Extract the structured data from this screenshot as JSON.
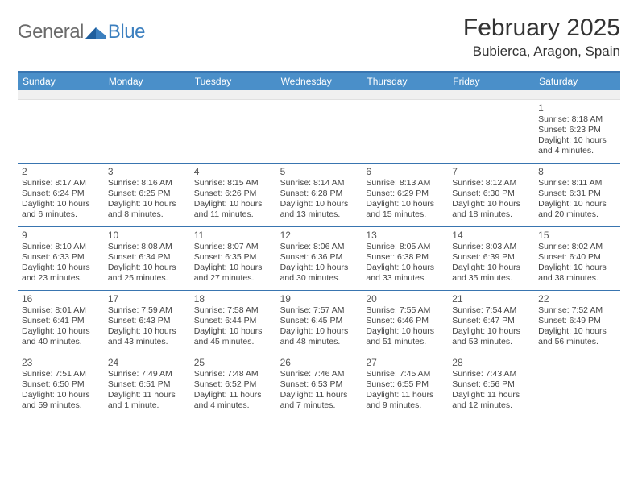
{
  "logo": {
    "text1": "General",
    "text2": "Blue"
  },
  "header": {
    "title": "February 2025",
    "location": "Bubierca, Aragon, Spain"
  },
  "colors": {
    "header_bar": "#4a8fc9",
    "rule": "#3975b0",
    "logo_gray": "#6b6b6b",
    "logo_blue": "#3b7fbf",
    "text": "#333333",
    "daytext": "#444444",
    "alt_row": "#f0f0f0"
  },
  "daynames": [
    "Sunday",
    "Monday",
    "Tuesday",
    "Wednesday",
    "Thursday",
    "Friday",
    "Saturday"
  ],
  "weeks": [
    [
      {
        "n": "",
        "sr": "",
        "ss": "",
        "dl": ""
      },
      {
        "n": "",
        "sr": "",
        "ss": "",
        "dl": ""
      },
      {
        "n": "",
        "sr": "",
        "ss": "",
        "dl": ""
      },
      {
        "n": "",
        "sr": "",
        "ss": "",
        "dl": ""
      },
      {
        "n": "",
        "sr": "",
        "ss": "",
        "dl": ""
      },
      {
        "n": "",
        "sr": "",
        "ss": "",
        "dl": ""
      },
      {
        "n": "1",
        "sr": "Sunrise: 8:18 AM",
        "ss": "Sunset: 6:23 PM",
        "dl": "Daylight: 10 hours and 4 minutes."
      }
    ],
    [
      {
        "n": "2",
        "sr": "Sunrise: 8:17 AM",
        "ss": "Sunset: 6:24 PM",
        "dl": "Daylight: 10 hours and 6 minutes."
      },
      {
        "n": "3",
        "sr": "Sunrise: 8:16 AM",
        "ss": "Sunset: 6:25 PM",
        "dl": "Daylight: 10 hours and 8 minutes."
      },
      {
        "n": "4",
        "sr": "Sunrise: 8:15 AM",
        "ss": "Sunset: 6:26 PM",
        "dl": "Daylight: 10 hours and 11 minutes."
      },
      {
        "n": "5",
        "sr": "Sunrise: 8:14 AM",
        "ss": "Sunset: 6:28 PM",
        "dl": "Daylight: 10 hours and 13 minutes."
      },
      {
        "n": "6",
        "sr": "Sunrise: 8:13 AM",
        "ss": "Sunset: 6:29 PM",
        "dl": "Daylight: 10 hours and 15 minutes."
      },
      {
        "n": "7",
        "sr": "Sunrise: 8:12 AM",
        "ss": "Sunset: 6:30 PM",
        "dl": "Daylight: 10 hours and 18 minutes."
      },
      {
        "n": "8",
        "sr": "Sunrise: 8:11 AM",
        "ss": "Sunset: 6:31 PM",
        "dl": "Daylight: 10 hours and 20 minutes."
      }
    ],
    [
      {
        "n": "9",
        "sr": "Sunrise: 8:10 AM",
        "ss": "Sunset: 6:33 PM",
        "dl": "Daylight: 10 hours and 23 minutes."
      },
      {
        "n": "10",
        "sr": "Sunrise: 8:08 AM",
        "ss": "Sunset: 6:34 PM",
        "dl": "Daylight: 10 hours and 25 minutes."
      },
      {
        "n": "11",
        "sr": "Sunrise: 8:07 AM",
        "ss": "Sunset: 6:35 PM",
        "dl": "Daylight: 10 hours and 27 minutes."
      },
      {
        "n": "12",
        "sr": "Sunrise: 8:06 AM",
        "ss": "Sunset: 6:36 PM",
        "dl": "Daylight: 10 hours and 30 minutes."
      },
      {
        "n": "13",
        "sr": "Sunrise: 8:05 AM",
        "ss": "Sunset: 6:38 PM",
        "dl": "Daylight: 10 hours and 33 minutes."
      },
      {
        "n": "14",
        "sr": "Sunrise: 8:03 AM",
        "ss": "Sunset: 6:39 PM",
        "dl": "Daylight: 10 hours and 35 minutes."
      },
      {
        "n": "15",
        "sr": "Sunrise: 8:02 AM",
        "ss": "Sunset: 6:40 PM",
        "dl": "Daylight: 10 hours and 38 minutes."
      }
    ],
    [
      {
        "n": "16",
        "sr": "Sunrise: 8:01 AM",
        "ss": "Sunset: 6:41 PM",
        "dl": "Daylight: 10 hours and 40 minutes."
      },
      {
        "n": "17",
        "sr": "Sunrise: 7:59 AM",
        "ss": "Sunset: 6:43 PM",
        "dl": "Daylight: 10 hours and 43 minutes."
      },
      {
        "n": "18",
        "sr": "Sunrise: 7:58 AM",
        "ss": "Sunset: 6:44 PM",
        "dl": "Daylight: 10 hours and 45 minutes."
      },
      {
        "n": "19",
        "sr": "Sunrise: 7:57 AM",
        "ss": "Sunset: 6:45 PM",
        "dl": "Daylight: 10 hours and 48 minutes."
      },
      {
        "n": "20",
        "sr": "Sunrise: 7:55 AM",
        "ss": "Sunset: 6:46 PM",
        "dl": "Daylight: 10 hours and 51 minutes."
      },
      {
        "n": "21",
        "sr": "Sunrise: 7:54 AM",
        "ss": "Sunset: 6:47 PM",
        "dl": "Daylight: 10 hours and 53 minutes."
      },
      {
        "n": "22",
        "sr": "Sunrise: 7:52 AM",
        "ss": "Sunset: 6:49 PM",
        "dl": "Daylight: 10 hours and 56 minutes."
      }
    ],
    [
      {
        "n": "23",
        "sr": "Sunrise: 7:51 AM",
        "ss": "Sunset: 6:50 PM",
        "dl": "Daylight: 10 hours and 59 minutes."
      },
      {
        "n": "24",
        "sr": "Sunrise: 7:49 AM",
        "ss": "Sunset: 6:51 PM",
        "dl": "Daylight: 11 hours and 1 minute."
      },
      {
        "n": "25",
        "sr": "Sunrise: 7:48 AM",
        "ss": "Sunset: 6:52 PM",
        "dl": "Daylight: 11 hours and 4 minutes."
      },
      {
        "n": "26",
        "sr": "Sunrise: 7:46 AM",
        "ss": "Sunset: 6:53 PM",
        "dl": "Daylight: 11 hours and 7 minutes."
      },
      {
        "n": "27",
        "sr": "Sunrise: 7:45 AM",
        "ss": "Sunset: 6:55 PM",
        "dl": "Daylight: 11 hours and 9 minutes."
      },
      {
        "n": "28",
        "sr": "Sunrise: 7:43 AM",
        "ss": "Sunset: 6:56 PM",
        "dl": "Daylight: 11 hours and 12 minutes."
      },
      {
        "n": "",
        "sr": "",
        "ss": "",
        "dl": ""
      }
    ]
  ]
}
